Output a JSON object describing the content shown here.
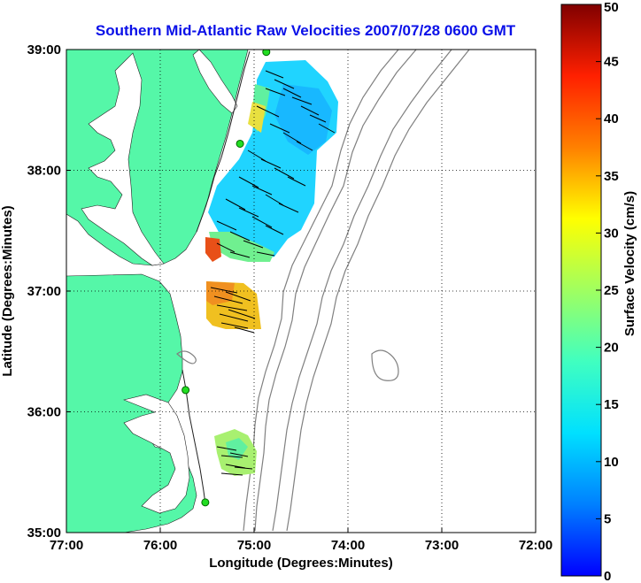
{
  "title": "Southern Mid-Atlantic Raw Velocities 2007/07/28 0600 GMT",
  "axes": {
    "xlabel": "Longitude (Degrees:Minutes)",
    "ylabel": "Latitude (Degrees:Minutes)",
    "x_ticks": [
      "77:00",
      "76:00",
      "75:00",
      "74:00",
      "73:00",
      "72:00"
    ],
    "y_ticks": [
      "39:00",
      "38:00",
      "37:00",
      "36:00",
      "35:00"
    ],
    "x_range": [
      -77,
      -72
    ],
    "y_range": [
      35,
      39
    ],
    "grid": "dotted"
  },
  "colorbar": {
    "label": "Surface Velocity (cm/s)",
    "ticks": [
      "50",
      "45",
      "40",
      "35",
      "30",
      "25",
      "20",
      "15",
      "10",
      "5",
      "0"
    ],
    "range": [
      0,
      50
    ],
    "colormap": "jet"
  },
  "colors": {
    "land": "#55f7a8",
    "title": "#0a10e8",
    "station": "#22dd22",
    "bathymetry": "#808080"
  },
  "stations": [
    {
      "lon": -74.87,
      "lat": 38.98
    },
    {
      "lon": -75.15,
      "lat": 38.22
    },
    {
      "lon": -75.73,
      "lat": 36.18
    },
    {
      "lon": -75.52,
      "lat": 35.25
    }
  ]
}
